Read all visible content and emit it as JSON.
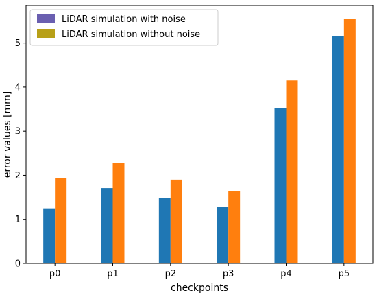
{
  "chart_data": {
    "type": "bar",
    "categories": [
      "p0",
      "p1",
      "p2",
      "p3",
      "p4",
      "p5"
    ],
    "series": [
      {
        "name": "LiDAR simulation with noise",
        "values": [
          1.25,
          1.71,
          1.48,
          1.29,
          3.53,
          5.15
        ],
        "color": "#1f77b4"
      },
      {
        "name": "LiDAR simulation without noise",
        "values": [
          1.93,
          2.28,
          1.9,
          1.64,
          4.15,
          5.55
        ],
        "color": "#ff7f0e"
      }
    ],
    "xlabel": "checkpoints",
    "ylabel": "error values [mm]",
    "ylim": [
      0,
      5.85
    ],
    "yticks": [
      0,
      1,
      2,
      3,
      4,
      5
    ],
    "legend_position": "top-left",
    "legend_swatch_colors": [
      "#6a5fb0",
      "#b8a018"
    ],
    "grid": false
  }
}
